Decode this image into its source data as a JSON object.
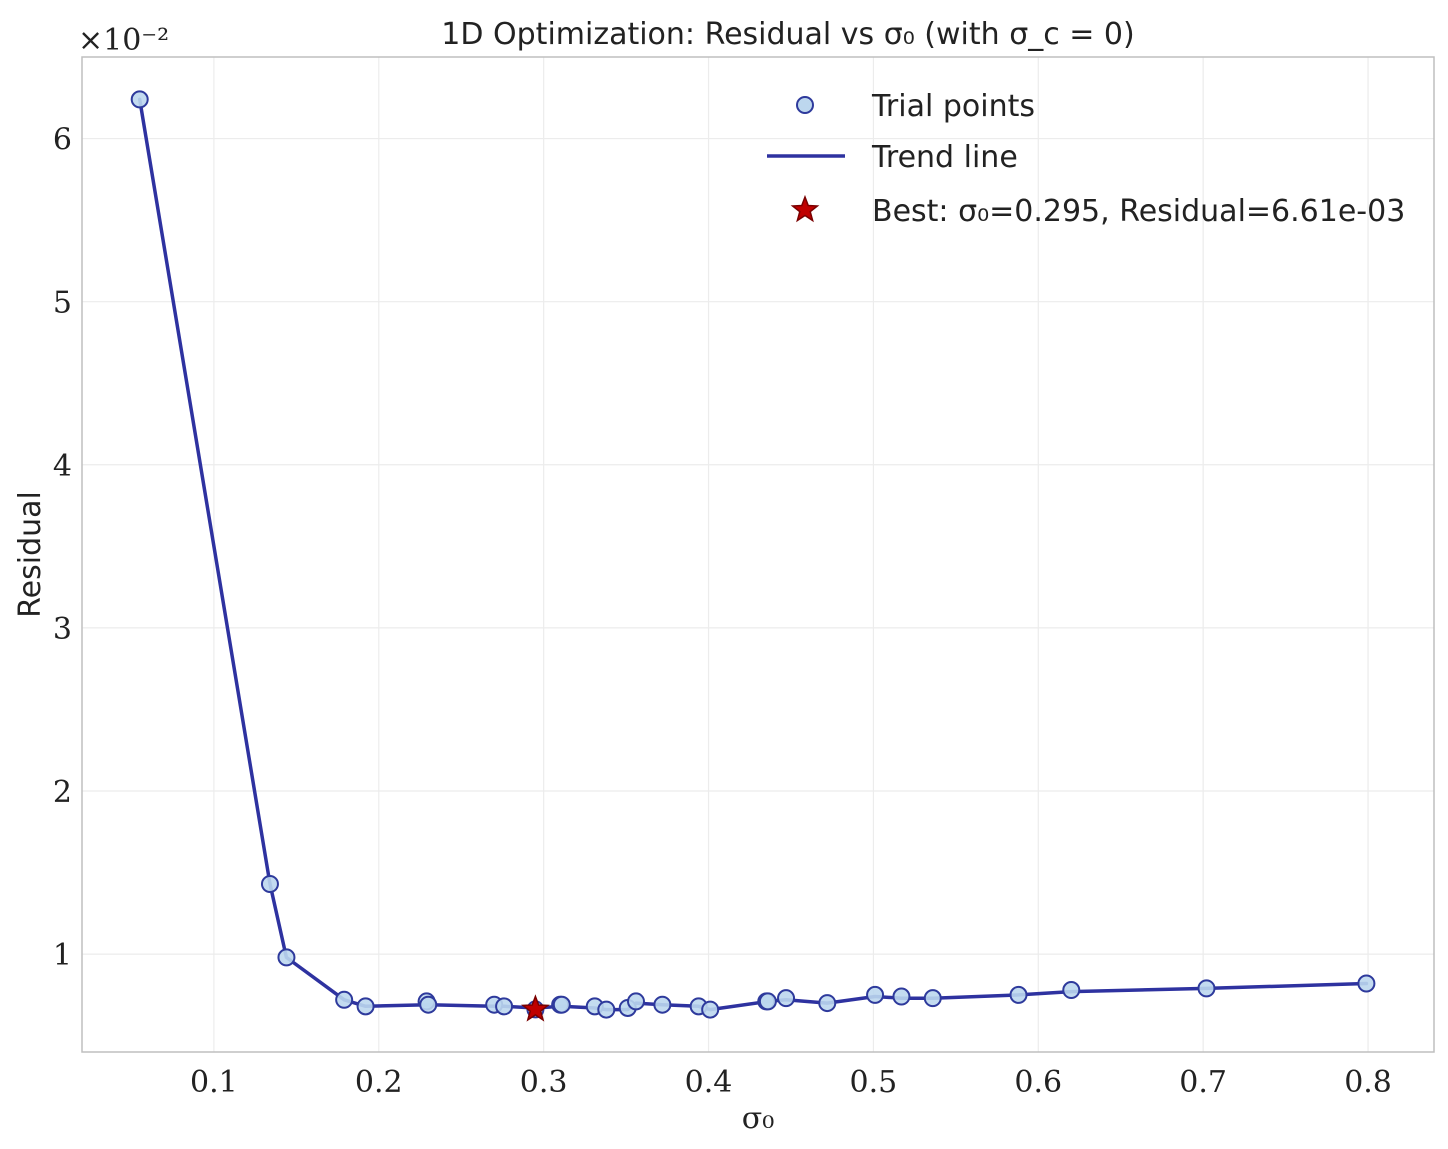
{
  "chart_data": {
    "type": "line",
    "title": "1D Optimization: Residual vs σ₀ (with σ_c = 0)",
    "xlabel": "σ₀",
    "ylabel": "Residual",
    "y_scale_note": "×10⁻²",
    "xlim": [
      0.02,
      0.84
    ],
    "ylim": [
      0.004,
      0.065
    ],
    "x_ticks": [
      0.1,
      0.2,
      0.3,
      0.4,
      0.5,
      0.6,
      0.7,
      0.8
    ],
    "x_tick_labels": [
      "0.1",
      "0.2",
      "0.3",
      "0.4",
      "0.5",
      "0.6",
      "0.7",
      "0.8"
    ],
    "y_ticks": [
      0.01,
      0.02,
      0.03,
      0.04,
      0.05,
      0.06
    ],
    "y_tick_labels": [
      "1",
      "2",
      "3",
      "4",
      "5",
      "6"
    ],
    "grid": true,
    "legend_position": "top-right",
    "series": [
      {
        "name": "Trial points",
        "kind": "scatter",
        "color": "#bdd7ee",
        "edge_color": "#2e3a9c",
        "x": [
          0.055,
          0.134,
          0.144,
          0.179,
          0.192,
          0.229,
          0.23,
          0.27,
          0.276,
          0.295,
          0.31,
          0.311,
          0.331,
          0.338,
          0.351,
          0.356,
          0.372,
          0.394,
          0.401,
          0.435,
          0.436,
          0.447,
          0.472,
          0.501,
          0.517,
          0.536,
          0.588,
          0.62,
          0.702,
          0.799
        ],
        "y": [
          0.0624,
          0.0143,
          0.0098,
          0.0072,
          0.0068,
          0.0071,
          0.0069,
          0.0069,
          0.0068,
          0.00661,
          0.0069,
          0.0069,
          0.0068,
          0.0066,
          0.0067,
          0.0071,
          0.0069,
          0.0068,
          0.0066,
          0.0071,
          0.0071,
          0.0073,
          0.007,
          0.0075,
          0.0074,
          0.0073,
          0.0075,
          0.0078,
          0.0079,
          0.0082
        ]
      },
      {
        "name": "Trend line",
        "kind": "line",
        "color": "#2e32a0",
        "x": [
          0.055,
          0.134,
          0.144,
          0.179,
          0.192,
          0.23,
          0.27,
          0.276,
          0.295,
          0.311,
          0.331,
          0.338,
          0.351,
          0.356,
          0.372,
          0.394,
          0.401,
          0.436,
          0.447,
          0.472,
          0.501,
          0.517,
          0.536,
          0.588,
          0.62,
          0.702,
          0.799
        ],
        "y": [
          0.0624,
          0.0143,
          0.0098,
          0.0072,
          0.0068,
          0.0069,
          0.0068,
          0.0068,
          0.0067,
          0.0068,
          0.0067,
          0.0066,
          0.0066,
          0.007,
          0.0069,
          0.0068,
          0.0066,
          0.0071,
          0.0072,
          0.007,
          0.0074,
          0.0073,
          0.0073,
          0.0075,
          0.0077,
          0.0079,
          0.0082
        ]
      },
      {
        "name": "Best: σ₀=0.295, Residual=6.61e-03",
        "kind": "marker-star",
        "color": "#c00000",
        "edge_color": "#7a0000",
        "x": [
          0.295
        ],
        "y": [
          0.00661
        ]
      }
    ]
  }
}
